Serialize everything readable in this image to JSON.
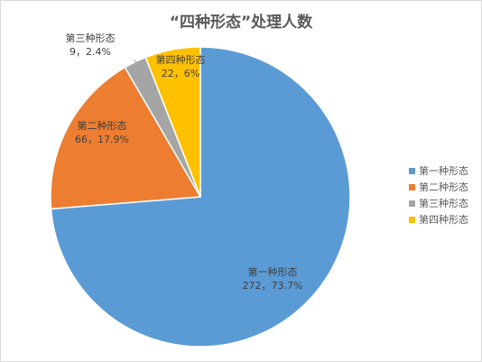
{
  "chart_data": {
    "type": "pie",
    "title": "“四种形态”处理人数",
    "categories": [
      "第一种形态",
      "第二种形态",
      "第三种形态",
      "第四种形态"
    ],
    "values": [
      272,
      66,
      9,
      22
    ],
    "data_labels": [
      "272，73.7%",
      "66，17.9%",
      "9，2.4%",
      "22，6%"
    ],
    "colors": [
      "#5b9bd5",
      "#ed7d31",
      "#a5a5a5",
      "#ffc000"
    ],
    "start_angle_deg": 0,
    "direction": "clockwise",
    "legend": "right"
  }
}
